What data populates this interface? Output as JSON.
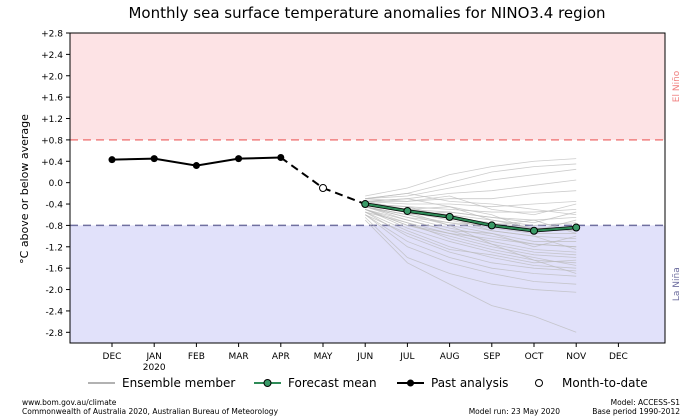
{
  "chart_data": {
    "type": "line",
    "title": "Monthly sea surface temperature anomalies for NINO3.4 region",
    "ylabel": "°C above or below average",
    "ylim": [
      -3.0,
      2.8
    ],
    "yticks": [
      "+2.8",
      "+2.4",
      "+2.0",
      "+1.6",
      "+1.2",
      "+0.8",
      "+0.4",
      "0.0",
      "-0.4",
      "-0.8",
      "-1.2",
      "-1.6",
      "-2.0",
      "-2.4",
      "-2.8"
    ],
    "ytick_values": [
      2.8,
      2.4,
      2.0,
      1.6,
      1.2,
      0.8,
      0.4,
      0.0,
      -0.4,
      -0.8,
      -1.2,
      -1.6,
      -2.0,
      -2.4,
      -2.8
    ],
    "x_labels": [
      "DEC",
      "JAN",
      "FEB",
      "MAR",
      "APR",
      "MAY",
      "JUN",
      "JUL",
      "AUG",
      "SEP",
      "OCT",
      "NOV",
      "DEC"
    ],
    "x_sublabels": [
      "",
      "2020",
      "",
      "",
      "",
      "",
      "",
      "",
      "",
      "",
      "",
      "",
      ""
    ],
    "thresholds": [
      {
        "value": 0.8,
        "label": "El Niño",
        "color": "#f08080",
        "fill": "#fde3e5"
      },
      {
        "value": -0.8,
        "label": "La Niña",
        "color": "#7070a0",
        "fill": "#e1e1fa"
      }
    ],
    "series": [
      {
        "name": "Past analysis",
        "color": "#000000",
        "x": [
          "DEC",
          "JAN",
          "FEB",
          "MAR",
          "APR"
        ],
        "values": [
          0.43,
          0.45,
          0.32,
          0.45,
          0.47
        ]
      },
      {
        "name": "Month-to-date",
        "color": "#000000",
        "x": [
          "MAY"
        ],
        "values": [
          -0.1
        ]
      },
      {
        "name": "Forecast mean",
        "color": "#2e8b57",
        "x": [
          "JUN",
          "JUL",
          "AUG",
          "SEP",
          "OCT",
          "NOV"
        ],
        "values": [
          -0.4,
          -0.53,
          -0.64,
          -0.8,
          -0.9,
          -0.84
        ]
      }
    ],
    "ensemble": {
      "name": "Ensemble member",
      "color": "#bbbbbb",
      "x": [
        "JUN",
        "JUL",
        "AUG",
        "SEP",
        "OCT",
        "NOV"
      ],
      "members": [
        [
          -0.25,
          -0.1,
          0.15,
          0.3,
          0.4,
          0.45
        ],
        [
          -0.3,
          -0.2,
          0.0,
          0.2,
          0.3,
          0.35
        ],
        [
          -0.3,
          -0.25,
          -0.1,
          0.05,
          0.15,
          0.25
        ],
        [
          -0.35,
          -0.3,
          -0.2,
          -0.15,
          -0.05,
          0.05
        ],
        [
          -0.35,
          -0.35,
          -0.3,
          -0.3,
          -0.2,
          -0.15
        ],
        [
          -0.35,
          -0.4,
          -0.4,
          -0.45,
          -0.4,
          -0.35
        ],
        [
          -0.4,
          -0.45,
          -0.5,
          -0.55,
          -0.55,
          -0.5
        ],
        [
          -0.4,
          -0.5,
          -0.55,
          -0.65,
          -0.7,
          -0.65
        ],
        [
          -0.4,
          -0.5,
          -0.6,
          -0.7,
          -0.8,
          -0.75
        ],
        [
          -0.4,
          -0.55,
          -0.65,
          -0.75,
          -0.85,
          -0.85
        ],
        [
          -0.4,
          -0.55,
          -0.7,
          -0.85,
          -0.95,
          -0.95
        ],
        [
          -0.45,
          -0.6,
          -0.75,
          -0.9,
          -1.0,
          -1.05
        ],
        [
          -0.45,
          -0.6,
          -0.8,
          -0.95,
          -1.1,
          -1.1
        ],
        [
          -0.45,
          -0.65,
          -0.85,
          -1.0,
          -1.15,
          -1.2
        ],
        [
          -0.45,
          -0.7,
          -0.9,
          -1.1,
          -1.25,
          -1.3
        ],
        [
          -0.5,
          -0.75,
          -0.95,
          -1.15,
          -1.3,
          -1.35
        ],
        [
          -0.5,
          -0.8,
          -1.0,
          -1.2,
          -1.35,
          -1.4
        ],
        [
          -0.5,
          -0.85,
          -1.1,
          -1.3,
          -1.45,
          -1.5
        ],
        [
          -0.55,
          -0.9,
          -1.2,
          -1.4,
          -1.55,
          -1.6
        ],
        [
          -0.55,
          -1.0,
          -1.3,
          -1.5,
          -1.6,
          -1.65
        ],
        [
          -0.6,
          -1.1,
          -1.4,
          -1.6,
          -1.7,
          -1.75
        ],
        [
          -0.6,
          -1.2,
          -1.5,
          -1.7,
          -1.85,
          -1.9
        ],
        [
          -0.65,
          -1.4,
          -1.7,
          -1.9,
          -2.0,
          -2.05
        ],
        [
          -0.7,
          -1.5,
          -1.9,
          -2.3,
          -2.5,
          -2.8
        ],
        [
          -0.3,
          -0.35,
          -0.25,
          -0.5,
          -0.6,
          -0.4
        ],
        [
          -0.35,
          -0.5,
          -0.45,
          -0.6,
          -0.9,
          -0.7
        ],
        [
          -0.45,
          -0.65,
          -0.75,
          -0.8,
          -0.7,
          -0.95
        ],
        [
          -0.5,
          -0.7,
          -0.9,
          -0.95,
          -1.2,
          -1.0
        ],
        [
          -0.4,
          -0.45,
          -0.65,
          -0.9,
          -1.0,
          -1.25
        ],
        [
          -0.55,
          -0.75,
          -1.05,
          -1.25,
          -1.4,
          -1.55
        ],
        [
          -0.35,
          -0.3,
          -0.45,
          -0.7,
          -0.85,
          -0.9
        ],
        [
          -0.45,
          -0.6,
          -0.55,
          -0.65,
          -0.75,
          -0.55
        ],
        [
          -0.5,
          -0.8,
          -0.95,
          -1.05,
          -1.15,
          -1.2
        ],
        [
          -0.4,
          -0.55,
          -0.8,
          -1.15,
          -1.45,
          -1.7
        ],
        [
          -0.3,
          -0.2,
          -0.35,
          -0.4,
          -0.5,
          -0.6
        ],
        [
          -0.6,
          -0.95,
          -1.25,
          -1.35,
          -1.5,
          -1.45
        ]
      ]
    },
    "legend": [
      "Ensemble member",
      "Forecast mean",
      "Past analysis",
      "Month-to-date"
    ],
    "legend_position": "bottom",
    "grid": false
  },
  "footer": {
    "url": "www.bom.gov.au/climate",
    "copyright": "Commonwealth of Australia 2020, Australian Bureau of Meteorology",
    "model": "Model: ACCESS-S1",
    "model_run": "Model run: 23 May 2020",
    "base_period": "Base period 1990-2012"
  }
}
